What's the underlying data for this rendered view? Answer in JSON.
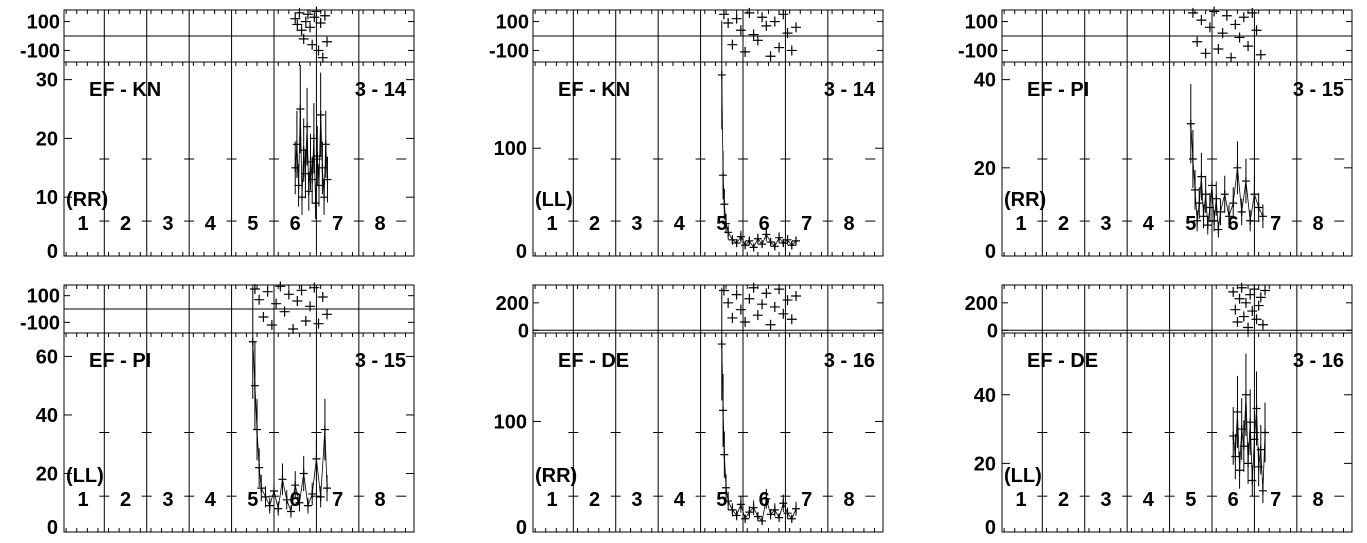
{
  "chart_data": [
    {
      "type": "scatter",
      "baseline": "EF - KN",
      "segment": "3 - 14",
      "pol": "(RR)",
      "phase_ticks": [
        "100",
        "-100"
      ],
      "phase_ylim": [
        -180,
        180
      ],
      "amp_ticks": [
        "30",
        "20",
        "10",
        "0"
      ],
      "amp_ylim": [
        0,
        33
      ],
      "xlim": [
        0.55,
        8.8
      ],
      "segments": [
        "1",
        "2",
        "3",
        "4",
        "5",
        "6",
        "7",
        "8"
      ],
      "series": [
        {
          "amp": [
            [
              6.0,
              15
            ],
            [
              6.04,
              19
            ],
            [
              6.08,
              12
            ],
            [
              6.12,
              25
            ],
            [
              6.16,
              10
            ],
            [
              6.2,
              18
            ],
            [
              6.24,
              14
            ],
            [
              6.28,
              22
            ],
            [
              6.32,
              11
            ],
            [
              6.36,
              16
            ],
            [
              6.4,
              13
            ],
            [
              6.44,
              20
            ],
            [
              6.48,
              9
            ],
            [
              6.52,
              17
            ],
            [
              6.56,
              12
            ],
            [
              6.6,
              24
            ],
            [
              6.64,
              15
            ],
            [
              6.68,
              10
            ],
            [
              6.72,
              19
            ],
            [
              6.76,
              13
            ]
          ],
          "phase": [
            [
              6.0,
              120
            ],
            [
              6.05,
              80
            ],
            [
              6.1,
              160
            ],
            [
              6.15,
              40
            ],
            [
              6.2,
              -20
            ],
            [
              6.25,
              100
            ],
            [
              6.3,
              150
            ],
            [
              6.35,
              60
            ],
            [
              6.4,
              -60
            ],
            [
              6.45,
              130
            ],
            [
              6.5,
              170
            ],
            [
              6.55,
              -100
            ],
            [
              6.6,
              90
            ],
            [
              6.65,
              -150
            ],
            [
              6.7,
              140
            ],
            [
              6.75,
              -40
            ]
          ]
        }
      ]
    },
    {
      "type": "scatter",
      "baseline": "EF - KN",
      "segment": "3 - 14",
      "pol": "(LL)",
      "phase_ticks": [
        "100",
        "-100"
      ],
      "phase_ylim": [
        -180,
        180
      ],
      "amp_ticks": [
        "100",
        "0"
      ],
      "amp_ylim": [
        0,
        180
      ],
      "xlim": [
        0.55,
        8.8
      ],
      "segments": [
        "1",
        "2",
        "3",
        "4",
        "5",
        "6",
        "7",
        "8"
      ],
      "series": [
        {
          "amp": [
            [
              5.0,
              168
            ],
            [
              5.03,
              75
            ],
            [
              5.06,
              48
            ],
            [
              5.1,
              30
            ],
            [
              5.15,
              22
            ],
            [
              5.25,
              15
            ],
            [
              5.35,
              12
            ],
            [
              5.45,
              18
            ],
            [
              5.55,
              10
            ],
            [
              5.65,
              14
            ],
            [
              5.75,
              8
            ],
            [
              5.85,
              16
            ],
            [
              5.95,
              11
            ],
            [
              6.05,
              20
            ],
            [
              6.15,
              13
            ],
            [
              6.25,
              9
            ],
            [
              6.35,
              17
            ],
            [
              6.45,
              12
            ],
            [
              6.55,
              15
            ],
            [
              6.65,
              10
            ],
            [
              6.75,
              14
            ]
          ],
          "phase": [
            [
              5.05,
              150
            ],
            [
              5.15,
              90
            ],
            [
              5.25,
              -60
            ],
            [
              5.35,
              120
            ],
            [
              5.45,
              40
            ],
            [
              5.55,
              -110
            ],
            [
              5.65,
              160
            ],
            [
              5.75,
              10
            ],
            [
              5.85,
              -30
            ],
            [
              5.95,
              130
            ],
            [
              6.05,
              70
            ],
            [
              6.15,
              -140
            ],
            [
              6.25,
              100
            ],
            [
              6.35,
              -80
            ],
            [
              6.45,
              150
            ],
            [
              6.55,
              20
            ],
            [
              6.65,
              -100
            ],
            [
              6.75,
              60
            ]
          ]
        }
      ]
    },
    {
      "type": "scatter",
      "baseline": "EF - PI",
      "segment": "3 - 15",
      "pol": "(RR)",
      "phase_ticks": [
        "100",
        "-100"
      ],
      "phase_ylim": [
        -180,
        180
      ],
      "amp_ticks": [
        "40",
        "20",
        "0"
      ],
      "amp_ylim": [
        0,
        44
      ],
      "xlim": [
        0.55,
        8.8
      ],
      "segments": [
        "1",
        "2",
        "3",
        "4",
        "5",
        "6",
        "7",
        "8"
      ],
      "series": [
        {
          "amp": [
            [
              5.0,
              30
            ],
            [
              5.05,
              22
            ],
            [
              5.1,
              15
            ],
            [
              5.15,
              8
            ],
            [
              5.2,
              12
            ],
            [
              5.25,
              18
            ],
            [
              5.3,
              9
            ],
            [
              5.35,
              14
            ],
            [
              5.4,
              7
            ],
            [
              5.45,
              11
            ],
            [
              5.5,
              16
            ],
            [
              5.55,
              8
            ],
            [
              5.6,
              13
            ],
            [
              5.65,
              6
            ],
            [
              5.7,
              10
            ],
            [
              5.8,
              14
            ],
            [
              5.9,
              9
            ],
            [
              6.0,
              12
            ],
            [
              6.1,
              20
            ],
            [
              6.2,
              10
            ],
            [
              6.3,
              17
            ],
            [
              6.4,
              8
            ],
            [
              6.5,
              14
            ],
            [
              6.6,
              11
            ],
            [
              6.7,
              9
            ]
          ],
          "phase": [
            [
              5.05,
              160
            ],
            [
              5.15,
              -40
            ],
            [
              5.25,
              110
            ],
            [
              5.35,
              -120
            ],
            [
              5.45,
              60
            ],
            [
              5.55,
              170
            ],
            [
              5.65,
              -90
            ],
            [
              5.75,
              20
            ],
            [
              5.85,
              140
            ],
            [
              5.95,
              -150
            ],
            [
              6.05,
              80
            ],
            [
              6.15,
              -10
            ],
            [
              6.25,
              130
            ],
            [
              6.35,
              -70
            ],
            [
              6.45,
              160
            ],
            [
              6.55,
              40
            ],
            [
              6.65,
              -130
            ]
          ]
        }
      ]
    },
    {
      "type": "scatter",
      "baseline": "EF - PI",
      "segment": "3 - 15",
      "pol": "(LL)",
      "phase_ticks": [
        "100",
        "-100"
      ],
      "phase_ylim": [
        -180,
        180
      ],
      "amp_ticks": [
        "60",
        "40",
        "20",
        "0"
      ],
      "amp_ylim": [
        0,
        68
      ],
      "xlim": [
        0.55,
        8.8
      ],
      "segments": [
        "1",
        "2",
        "3",
        "4",
        "5",
        "6",
        "7",
        "8"
      ],
      "series": [
        {
          "amp": [
            [
              5.0,
              65
            ],
            [
              5.05,
              50
            ],
            [
              5.1,
              35
            ],
            [
              5.15,
              22
            ],
            [
              5.2,
              15
            ],
            [
              5.3,
              12
            ],
            [
              5.4,
              9
            ],
            [
              5.5,
              14
            ],
            [
              5.6,
              8
            ],
            [
              5.7,
              18
            ],
            [
              5.8,
              11
            ],
            [
              5.9,
              7
            ],
            [
              6.0,
              16
            ],
            [
              6.1,
              10
            ],
            [
              6.2,
              20
            ],
            [
              6.3,
              9
            ],
            [
              6.4,
              13
            ],
            [
              6.5,
              25
            ],
            [
              6.6,
              12
            ],
            [
              6.7,
              35
            ],
            [
              6.75,
              15
            ]
          ],
          "phase": [
            [
              5.05,
              150
            ],
            [
              5.15,
              70
            ],
            [
              5.25,
              -60
            ],
            [
              5.35,
              130
            ],
            [
              5.45,
              -120
            ],
            [
              5.55,
              40
            ],
            [
              5.65,
              170
            ],
            [
              5.75,
              -20
            ],
            [
              5.85,
              110
            ],
            [
              5.95,
              -150
            ],
            [
              6.05,
              60
            ],
            [
              6.15,
              140
            ],
            [
              6.25,
              -90
            ],
            [
              6.35,
              20
            ],
            [
              6.45,
              160
            ],
            [
              6.55,
              -110
            ],
            [
              6.65,
              90
            ],
            [
              6.75,
              -40
            ]
          ]
        }
      ]
    },
    {
      "type": "scatter",
      "baseline": "EF - DE",
      "segment": "3 - 16",
      "pol": "(RR)",
      "phase_ticks": [
        "200",
        "0"
      ],
      "phase_ylim": [
        -20,
        330
      ],
      "amp_ticks": [
        "100",
        "0"
      ],
      "amp_ylim": [
        0,
        180
      ],
      "xlim": [
        0.55,
        8.8
      ],
      "segments": [
        "1",
        "2",
        "3",
        "4",
        "5",
        "6",
        "7",
        "8"
      ],
      "series": [
        {
          "amp": [
            [
              5.0,
              170
            ],
            [
              5.03,
              110
            ],
            [
              5.06,
              70
            ],
            [
              5.1,
              40
            ],
            [
              5.15,
              28
            ],
            [
              5.25,
              20
            ],
            [
              5.35,
              15
            ],
            [
              5.45,
              25
            ],
            [
              5.55,
              12
            ],
            [
              5.65,
              18
            ],
            [
              5.75,
              22
            ],
            [
              5.85,
              14
            ],
            [
              5.95,
              10
            ],
            [
              6.05,
              30
            ],
            [
              6.15,
              16
            ],
            [
              6.25,
              20
            ],
            [
              6.35,
              13
            ],
            [
              6.45,
              26
            ],
            [
              6.55,
              17
            ],
            [
              6.65,
              12
            ],
            [
              6.75,
              21
            ]
          ],
          "phase": [
            [
              5.05,
              290
            ],
            [
              5.15,
              200
            ],
            [
              5.25,
              90
            ],
            [
              5.35,
              260
            ],
            [
              5.45,
              150
            ],
            [
              5.55,
              60
            ],
            [
              5.65,
              230
            ],
            [
              5.75,
              310
            ],
            [
              5.85,
              110
            ],
            [
              5.95,
              190
            ],
            [
              6.05,
              270
            ],
            [
              6.15,
              40
            ],
            [
              6.25,
              170
            ],
            [
              6.35,
              300
            ],
            [
              6.45,
              120
            ],
            [
              6.55,
              220
            ],
            [
              6.65,
              80
            ],
            [
              6.75,
              250
            ]
          ]
        }
      ]
    },
    {
      "type": "scatter",
      "baseline": "EF - DE",
      "segment": "3 - 16",
      "pol": "(LL)",
      "phase_ticks": [
        "200",
        "0"
      ],
      "phase_ylim": [
        -20,
        330
      ],
      "amp_ticks": [
        "40",
        "20",
        "0"
      ],
      "amp_ylim": [
        0,
        58
      ],
      "xlim": [
        0.55,
        8.8
      ],
      "segments": [
        "1",
        "2",
        "3",
        "4",
        "5",
        "6",
        "7",
        "8"
      ],
      "series": [
        {
          "amp": [
            [
              6.0,
              28
            ],
            [
              6.05,
              22
            ],
            [
              6.1,
              35
            ],
            [
              6.15,
              18
            ],
            [
              6.2,
              30
            ],
            [
              6.25,
              25
            ],
            [
              6.3,
              40
            ],
            [
              6.35,
              20
            ],
            [
              6.4,
              32
            ],
            [
              6.45,
              15
            ],
            [
              6.5,
              27
            ],
            [
              6.55,
              36
            ],
            [
              6.6,
              19
            ],
            [
              6.65,
              24
            ],
            [
              6.7,
              12
            ],
            [
              6.75,
              29
            ]
          ],
          "phase": [
            [
              6.0,
              280
            ],
            [
              6.05,
              150
            ],
            [
              6.1,
              60
            ],
            [
              6.15,
              230
            ],
            [
              6.2,
              310
            ],
            [
              6.25,
              100
            ],
            [
              6.3,
              200
            ],
            [
              6.35,
              20
            ],
            [
              6.4,
              260
            ],
            [
              6.45,
              140
            ],
            [
              6.5,
              300
            ],
            [
              6.55,
              80
            ],
            [
              6.6,
              180
            ],
            [
              6.65,
              240
            ],
            [
              6.7,
              40
            ],
            [
              6.75,
              290
            ]
          ]
        }
      ]
    }
  ]
}
